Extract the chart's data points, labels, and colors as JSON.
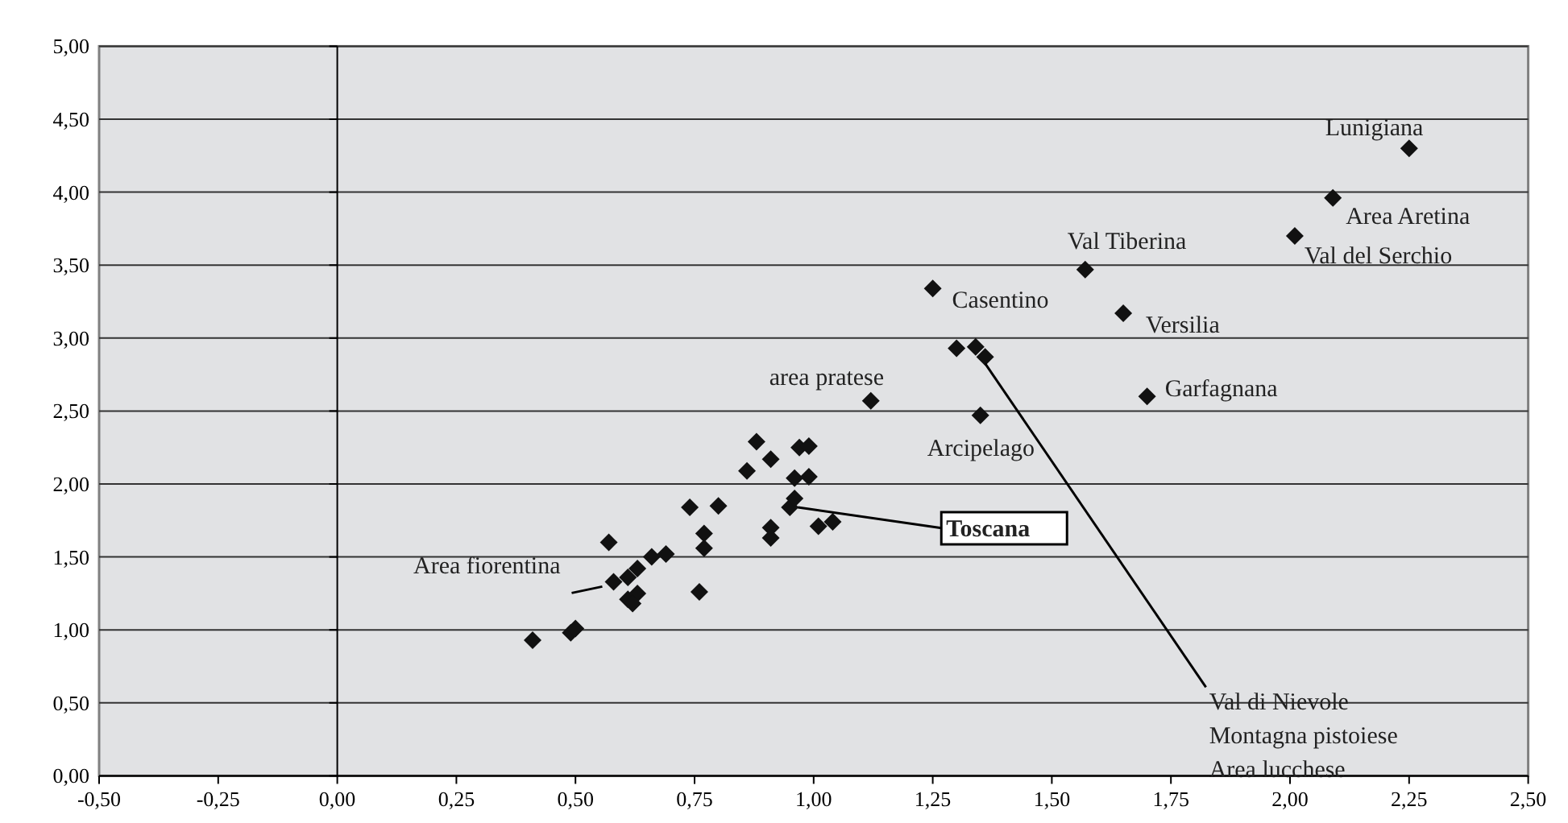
{
  "chart_data": {
    "type": "scatter",
    "marker": "diamond",
    "grid": "y",
    "xlim": [
      -0.5,
      2.5
    ],
    "ylim": [
      0,
      5
    ],
    "xticks": [
      {
        "value": -0.5,
        "label": "-0,50"
      },
      {
        "value": -0.25,
        "label": "-0,25"
      },
      {
        "value": 0,
        "label": "0,00"
      },
      {
        "value": 0.25,
        "label": "0,25"
      },
      {
        "value": 0.5,
        "label": "0,50"
      },
      {
        "value": 0.75,
        "label": "0,75"
      },
      {
        "value": 1,
        "label": "1,00"
      },
      {
        "value": 1.25,
        "label": "1,25"
      },
      {
        "value": 1.5,
        "label": "1,50"
      },
      {
        "value": 1.75,
        "label": "1,75"
      },
      {
        "value": 2,
        "label": "2,00"
      },
      {
        "value": 2.25,
        "label": "2,25"
      },
      {
        "value": 2.5,
        "label": "2,50"
      }
    ],
    "yticks": [
      {
        "value": 0,
        "label": "0,00"
      },
      {
        "value": 0.5,
        "label": "0,50"
      },
      {
        "value": 1,
        "label": "1,00"
      },
      {
        "value": 1.5,
        "label": "1,50"
      },
      {
        "value": 2,
        "label": "2,00"
      },
      {
        "value": 2.5,
        "label": "2,50"
      },
      {
        "value": 3,
        "label": "3,00"
      },
      {
        "value": 3.5,
        "label": "3,50"
      },
      {
        "value": 4,
        "label": "4,00"
      },
      {
        "value": 4.5,
        "label": "4,50"
      },
      {
        "value": 5,
        "label": "5,00"
      }
    ],
    "series": [
      {
        "color": "#111111",
        "x": [
          2.25,
          2.09,
          2.01,
          1.57,
          1.25,
          1.65,
          1.3,
          1.34,
          1.36,
          1.7,
          1.35,
          1.12,
          0.95,
          0.97,
          0.99,
          0.96,
          0.99,
          0.96,
          1.01,
          1.04,
          0.41,
          0.49,
          0.5,
          0.57,
          0.58,
          0.61,
          0.61,
          0.63,
          0.62,
          0.63,
          0.66,
          0.69,
          0.74,
          0.8,
          0.77,
          0.77,
          0.76,
          0.86,
          0.88,
          0.91,
          0.91,
          0.91
        ],
        "values": [
          4.3,
          3.96,
          3.7,
          3.47,
          3.34,
          3.17,
          2.93,
          2.94,
          2.87,
          2.6,
          2.47,
          2.57,
          1.84,
          2.25,
          2.26,
          2.04,
          2.05,
          1.9,
          1.71,
          1.74,
          0.93,
          0.98,
          1.01,
          1.6,
          1.33,
          1.36,
          1.21,
          1.25,
          1.18,
          1.42,
          1.5,
          1.52,
          1.84,
          1.85,
          1.66,
          1.56,
          1.26,
          2.09,
          2.29,
          2.17,
          1.7,
          1.63
        ]
      }
    ],
    "annotations": [
      {
        "text": "Lunigiana",
        "x": 2.25,
        "y": 4.3
      },
      {
        "text": "Area Aretina",
        "x": 2.09,
        "y": 3.96
      },
      {
        "text": "Val del Serchio",
        "x": 2.01,
        "y": 3.7
      },
      {
        "text": "Val Tiberina",
        "x": 1.57,
        "y": 3.47
      },
      {
        "text": "Casentino",
        "x": 1.25,
        "y": 3.34
      },
      {
        "text": "Versilia",
        "x": 1.65,
        "y": 3.17
      },
      {
        "text": "Garfagnana",
        "x": 1.7,
        "y": 2.6
      },
      {
        "text": "Arcipelago",
        "x": 1.35,
        "y": 2.47
      },
      {
        "text": "area pratese",
        "x": 1.12,
        "y": 2.57
      },
      {
        "text": "Toscana",
        "x": 0.95,
        "y": 1.84
      },
      {
        "text": "Area fiorentina",
        "x": 0.58,
        "y": 1.33
      },
      {
        "text": "Val di Nievole",
        "x": 1.36,
        "y": 2.87
      },
      "Montagna pistoiese",
      "Area lucchese"
    ]
  }
}
